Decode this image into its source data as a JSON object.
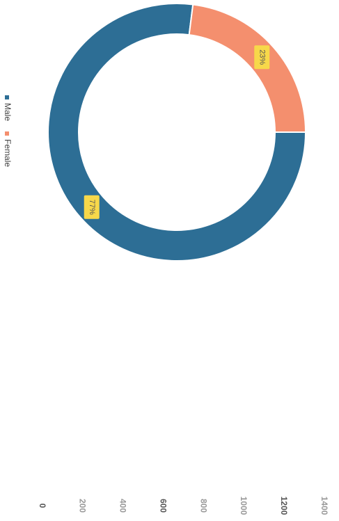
{
  "chart_data": {
    "type": "donut",
    "categories": [
      "Male",
      "Female"
    ],
    "values": [
      77,
      23
    ],
    "value_labels": [
      "77%",
      "23%"
    ],
    "colors": [
      "#2d6e95",
      "#f48f6e"
    ],
    "legend": "left",
    "ylim": [
      0,
      1400
    ],
    "yticks": [
      0,
      200,
      400,
      600,
      800,
      1000,
      1200,
      1400
    ]
  }
}
